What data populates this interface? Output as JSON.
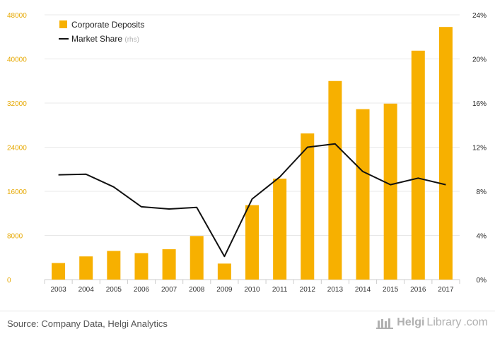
{
  "chart_data": {
    "type": "bar+line",
    "categories": [
      "2003",
      "2004",
      "2005",
      "2006",
      "2007",
      "2008",
      "2009",
      "2010",
      "2011",
      "2012",
      "2013",
      "2014",
      "2015",
      "2016",
      "2017"
    ],
    "series": [
      {
        "name": "Corporate Deposits",
        "type": "bar",
        "axis": "left",
        "color": "#f7b000",
        "values": [
          3000,
          4200,
          5200,
          4800,
          5500,
          7900,
          2900,
          13500,
          18300,
          26500,
          36000,
          30900,
          31900,
          41500,
          45800
        ]
      },
      {
        "name": "Market Share",
        "type": "line",
        "axis": "right",
        "color": "#111111",
        "values": [
          9.5,
          9.55,
          8.4,
          6.6,
          6.4,
          6.55,
          2.1,
          7.3,
          9.3,
          12.0,
          12.3,
          9.8,
          8.6,
          9.2,
          8.6
        ]
      }
    ],
    "y_left": {
      "min": 0,
      "max": 48000,
      "ticks": [
        "0",
        "8000",
        "16000",
        "24000",
        "32000",
        "40000",
        "48000"
      ],
      "tick_values": [
        0,
        8000,
        16000,
        24000,
        32000,
        40000,
        48000
      ]
    },
    "y_right": {
      "min": 0,
      "max": 24,
      "ticks": [
        "0%",
        "4%",
        "8%",
        "12%",
        "16%",
        "20%",
        "24%"
      ],
      "tick_values": [
        0,
        4,
        8,
        12,
        16,
        20,
        24
      ]
    },
    "legend": {
      "placement": "top-left",
      "items": [
        {
          "label": "Corporate Deposits",
          "suffix": ""
        },
        {
          "label": "Market Share",
          "suffix": "(rhs)"
        }
      ]
    },
    "grid": true,
    "colors": {
      "bar": "#f7b000",
      "line": "#111111",
      "left_tick": "#e6a800",
      "right_tick": "#222222",
      "grid": "#e8e8e8"
    }
  },
  "footer": {
    "source": "Source: Company Data, Helgi Analytics",
    "brand_part1": "Helgi",
    "brand_part2": "Library",
    "brand_suffix": ".com"
  }
}
